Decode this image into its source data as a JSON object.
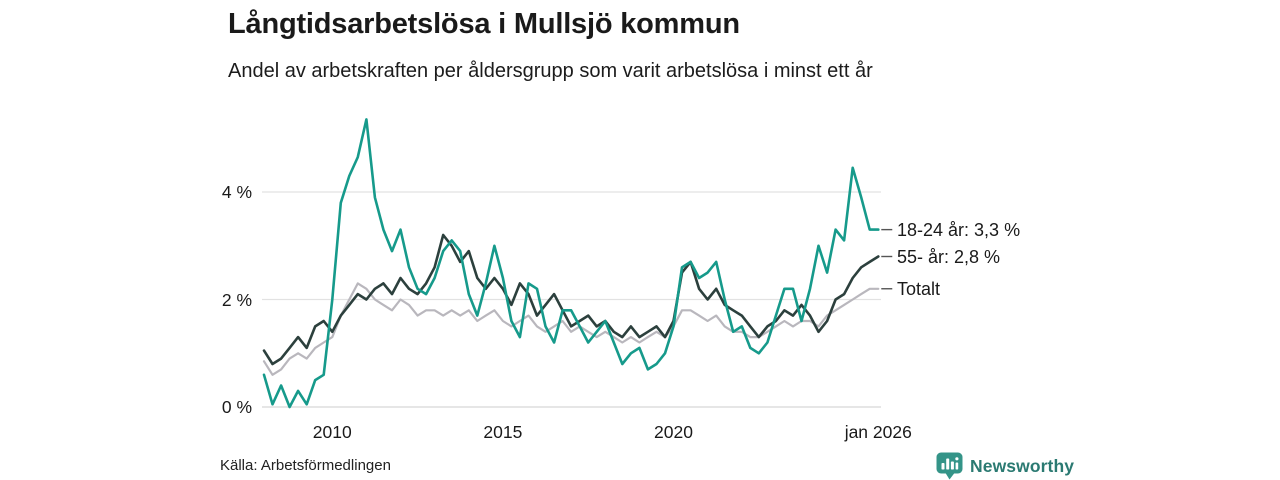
{
  "header": {
    "title": "Långtidsarbetslösa i Mullsjö kommun",
    "subtitle": "Andel av arbetskraften per åldersgrupp som varit arbetslösa i minst ett år"
  },
  "chart_data": {
    "type": "line",
    "title": "Långtidsarbetslösa i Mullsjö kommun",
    "subtitle": "Andel av arbetskraften per åldersgrupp som varit arbetslösa i minst ett år",
    "unit": "%",
    "x_start": 2008.0,
    "x_step": 0.25,
    "xlim": [
      2008.0,
      2026.08
    ],
    "ylim": [
      0,
      5.6
    ],
    "grid": "horizontal",
    "gridline_color": "#e2e2e2",
    "zeroline_color": "#d6d6d6",
    "yticks": [
      {
        "label": "0 %",
        "value": 0
      },
      {
        "label": "2 %",
        "value": 2
      },
      {
        "label": "4 %",
        "value": 4
      }
    ],
    "xticks": [
      {
        "label": "2010",
        "year": 2010
      },
      {
        "label": "2015",
        "year": 2015
      },
      {
        "label": "2020",
        "year": 2020
      },
      {
        "label": "jan 2026",
        "year": 2026.0
      }
    ],
    "legend_position": "right-end-of-line",
    "leader_dash_color": "#555555",
    "series": [
      {
        "name": "Totalt",
        "end_label": "Totalt",
        "color": "#b9b7bd",
        "width": 2.2,
        "values": [
          0.85,
          0.6,
          0.7,
          0.9,
          1.0,
          0.9,
          1.1,
          1.2,
          1.3,
          1.7,
          2.0,
          2.3,
          2.2,
          2.0,
          1.9,
          1.8,
          2.0,
          1.9,
          1.7,
          1.8,
          1.8,
          1.7,
          1.8,
          1.7,
          1.8,
          1.6,
          1.7,
          1.8,
          1.6,
          1.5,
          1.6,
          1.7,
          1.5,
          1.4,
          1.5,
          1.6,
          1.4,
          1.5,
          1.4,
          1.3,
          1.4,
          1.3,
          1.2,
          1.3,
          1.2,
          1.3,
          1.4,
          1.3,
          1.5,
          1.8,
          1.8,
          1.7,
          1.6,
          1.7,
          1.5,
          1.4,
          1.4,
          1.3,
          1.3,
          1.4,
          1.5,
          1.6,
          1.5,
          1.6,
          1.6,
          1.5,
          1.7,
          1.8,
          1.9,
          2.0,
          2.1,
          2.2,
          2.2
        ]
      },
      {
        "name": "55- år",
        "end_label": "55- år: 2,8 %",
        "color": "#2c403d",
        "width": 2.6,
        "values": [
          1.05,
          0.8,
          0.9,
          1.1,
          1.3,
          1.1,
          1.5,
          1.6,
          1.4,
          1.7,
          1.9,
          2.1,
          2.0,
          2.2,
          2.3,
          2.1,
          2.4,
          2.2,
          2.1,
          2.3,
          2.6,
          3.2,
          3.0,
          2.7,
          2.9,
          2.4,
          2.2,
          2.4,
          2.2,
          1.9,
          2.3,
          2.1,
          1.7,
          1.9,
          2.1,
          1.8,
          1.5,
          1.6,
          1.7,
          1.5,
          1.6,
          1.4,
          1.3,
          1.5,
          1.3,
          1.4,
          1.5,
          1.3,
          1.6,
          2.5,
          2.7,
          2.2,
          2.0,
          2.2,
          1.9,
          1.8,
          1.7,
          1.5,
          1.3,
          1.5,
          1.6,
          1.8,
          1.7,
          1.9,
          1.7,
          1.4,
          1.6,
          2.0,
          2.1,
          2.4,
          2.6,
          2.7,
          2.8
        ]
      },
      {
        "name": "18-24 år",
        "end_label": "18-24 år: 3,3 %",
        "color": "#169a8b",
        "width": 2.6,
        "values": [
          0.6,
          0.05,
          0.4,
          0.0,
          0.3,
          0.05,
          0.5,
          0.6,
          2.0,
          3.8,
          4.3,
          4.65,
          5.35,
          3.9,
          3.3,
          2.9,
          3.3,
          2.6,
          2.2,
          2.1,
          2.4,
          2.9,
          3.1,
          2.9,
          2.1,
          1.7,
          2.3,
          3.0,
          2.4,
          1.6,
          1.3,
          2.3,
          2.2,
          1.5,
          1.2,
          1.8,
          1.8,
          1.5,
          1.2,
          1.4,
          1.6,
          1.2,
          0.8,
          1.0,
          1.1,
          0.7,
          0.8,
          1.0,
          1.5,
          2.6,
          2.7,
          2.4,
          2.5,
          2.7,
          2.0,
          1.4,
          1.5,
          1.1,
          1.0,
          1.2,
          1.7,
          2.2,
          2.2,
          1.6,
          2.2,
          3.0,
          2.5,
          3.3,
          3.1,
          4.45,
          3.9,
          3.3,
          3.3
        ]
      }
    ]
  },
  "footer": {
    "source": "Källa: Arbetsförmedlingen",
    "brand": "Newsworthy",
    "brand_color": "#2b7a72",
    "brand_icon": "newsworthy-logo-icon",
    "brand_icon_color": "#349488"
  }
}
